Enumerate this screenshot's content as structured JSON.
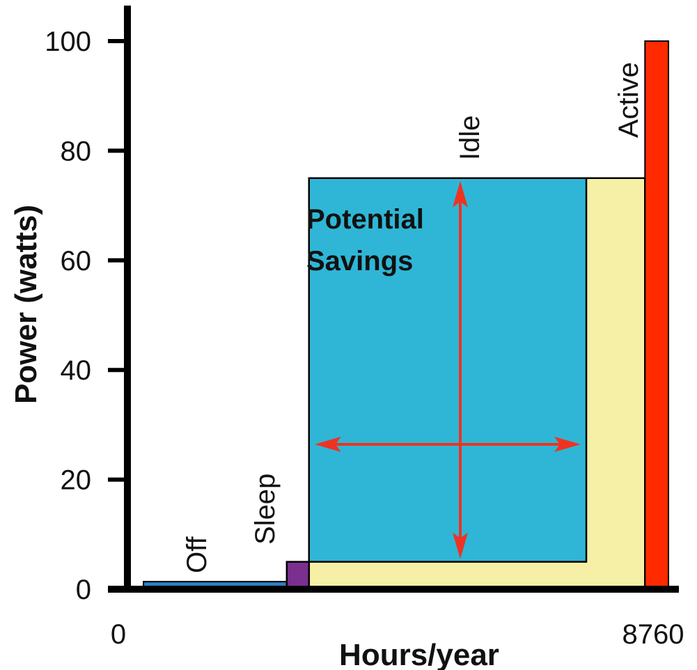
{
  "chart_data": {
    "type": "area",
    "xlabel": "Hours/year",
    "ylabel": "Power (watts)",
    "ylim": [
      0,
      100
    ],
    "yticks": [
      0,
      20,
      40,
      60,
      80,
      100
    ],
    "xtick_labels": [
      "0",
      "8760"
    ],
    "xlim": [
      0,
      8760
    ],
    "grid": false,
    "legend": "none",
    "states": [
      {
        "name": "Off",
        "power_w": 1,
        "hours_start": 260,
        "hours_end": 2580,
        "color": "#2f7fc1"
      },
      {
        "name": "Sleep",
        "power_w": 5,
        "hours_start": 2580,
        "hours_end": 2940,
        "color": "#7b2f8f"
      },
      {
        "name": "Idle",
        "power_w": 75,
        "hours_start": 2940,
        "hours_end": 8380,
        "color": "#f5f0a6"
      },
      {
        "name": "Active",
        "power_w": 100,
        "hours_start": 8380,
        "hours_end": 8760,
        "color": "#ff2a00"
      }
    ],
    "savings_region": {
      "label_line1": "Potential",
      "label_line2": "Savings",
      "power_low_w": 5,
      "power_high_w": 75,
      "hours_start": 2940,
      "hours_end": 7430,
      "color": "#2fb6d6"
    },
    "arrow_color": "#ee3322"
  }
}
